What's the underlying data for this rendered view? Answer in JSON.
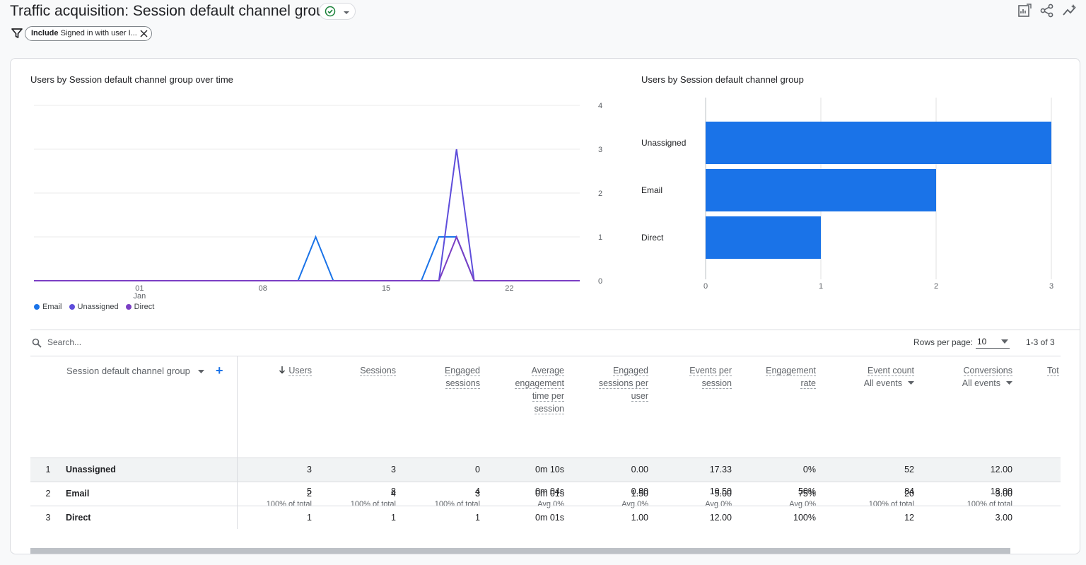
{
  "page": {
    "title": "Traffic acquisition: Session default channel group",
    "filter_chip": {
      "prefix": "Include",
      "text": "Signed in with user I..."
    },
    "icons": [
      "check-circle-icon",
      "chevron-down-icon",
      "edit-report-icon",
      "share-icon",
      "insights-icon",
      "filter-icon",
      "close-icon"
    ]
  },
  "line_chart": {
    "title": "Users by Session default channel group over time",
    "legend": [
      "Email",
      "Unassigned",
      "Direct"
    ]
  },
  "bar_chart": {
    "title": "Users by Session default channel group"
  },
  "chart_data": [
    {
      "type": "line",
      "title": "Users by Session default channel group over time",
      "x_labels": [
        "01\nJan",
        "08",
        "15",
        "22"
      ],
      "x_start": "2023-12-26",
      "ylim": [
        0,
        4
      ],
      "y_ticks": [
        0,
        1,
        2,
        3,
        4
      ],
      "grid": true,
      "legend_position": "bottom-left",
      "series": [
        {
          "name": "Email",
          "color": "#1a73e8",
          "points": [
            [
              "2023-12-26",
              0
            ],
            [
              "2024-01-10",
              0
            ],
            [
              "2024-01-11",
              1
            ],
            [
              "2024-01-12",
              0
            ],
            [
              "2024-01-17",
              0
            ],
            [
              "2024-01-18",
              1
            ],
            [
              "2024-01-19",
              1
            ],
            [
              "2024-01-20",
              0
            ],
            [
              "2024-01-26",
              0
            ]
          ]
        },
        {
          "name": "Unassigned",
          "color": "#5e4ddb",
          "points": [
            [
              "2023-12-26",
              0
            ],
            [
              "2024-01-18",
              0
            ],
            [
              "2024-01-19",
              3
            ],
            [
              "2024-01-20",
              0
            ],
            [
              "2024-01-26",
              0
            ]
          ]
        },
        {
          "name": "Direct",
          "color": "#7b3fc4",
          "points": [
            [
              "2023-12-26",
              0
            ],
            [
              "2024-01-18",
              0
            ],
            [
              "2024-01-19",
              1
            ],
            [
              "2024-01-20",
              0
            ],
            [
              "2024-01-26",
              0
            ]
          ]
        }
      ]
    },
    {
      "type": "bar",
      "orientation": "horizontal",
      "title": "Users by Session default channel group",
      "categories": [
        "Unassigned",
        "Email",
        "Direct"
      ],
      "values": [
        3,
        2,
        1
      ],
      "xlim": [
        0,
        3
      ],
      "x_ticks": [
        0,
        1,
        2,
        3
      ],
      "color": "#1a73e8",
      "grid": true
    }
  ],
  "table": {
    "search_placeholder": "Search...",
    "rows_per_page_label": "Rows per page:",
    "rows_per_page": "10",
    "pagination": "1-3 of 3",
    "dimension_header": "Session default channel group",
    "add_dimension": "+",
    "columns": [
      {
        "lines": [
          "Users"
        ],
        "sub": "",
        "sorted": true
      },
      {
        "lines": [
          "Sessions"
        ],
        "sub": ""
      },
      {
        "lines": [
          "Engaged",
          "sessions"
        ],
        "sub": ""
      },
      {
        "lines": [
          "Average",
          "engagement",
          "time per",
          "session"
        ],
        "sub": ""
      },
      {
        "lines": [
          "Engaged",
          "sessions per",
          "user"
        ],
        "sub": ""
      },
      {
        "lines": [
          "Events per",
          "session"
        ],
        "sub": ""
      },
      {
        "lines": [
          "Engagement",
          "rate"
        ],
        "sub": ""
      },
      {
        "lines": [
          "Event count"
        ],
        "sub": "All events"
      },
      {
        "lines": [
          "Conversions"
        ],
        "sub": "All events"
      },
      {
        "lines": [
          "Tot"
        ],
        "sub": ""
      }
    ],
    "totals": [
      {
        "value": "5",
        "sub": "100% of total"
      },
      {
        "value": "8",
        "sub": "100% of total"
      },
      {
        "value": "4",
        "sub": "100% of total"
      },
      {
        "value": "0m 04s",
        "sub": "Avg 0%"
      },
      {
        "value": "0.80",
        "sub": "Avg 0%"
      },
      {
        "value": "10.50",
        "sub": "Avg 0%"
      },
      {
        "value": "50%",
        "sub": "Avg 0%"
      },
      {
        "value": "84",
        "sub": "100% of total"
      },
      {
        "value": "18.00",
        "sub": "100% of total"
      }
    ],
    "rows": [
      {
        "num": "1",
        "name": "Unassigned",
        "cells": [
          "3",
          "3",
          "0",
          "0m 10s",
          "0.00",
          "17.33",
          "0%",
          "52",
          "12.00"
        ]
      },
      {
        "num": "2",
        "name": "Email",
        "cells": [
          "2",
          "4",
          "3",
          "0m 01s",
          "1.50",
          "5.00",
          "75%",
          "20",
          "3.00"
        ]
      },
      {
        "num": "3",
        "name": "Direct",
        "cells": [
          "1",
          "1",
          "1",
          "0m 01s",
          "1.00",
          "12.00",
          "100%",
          "12",
          "3.00"
        ]
      }
    ]
  }
}
